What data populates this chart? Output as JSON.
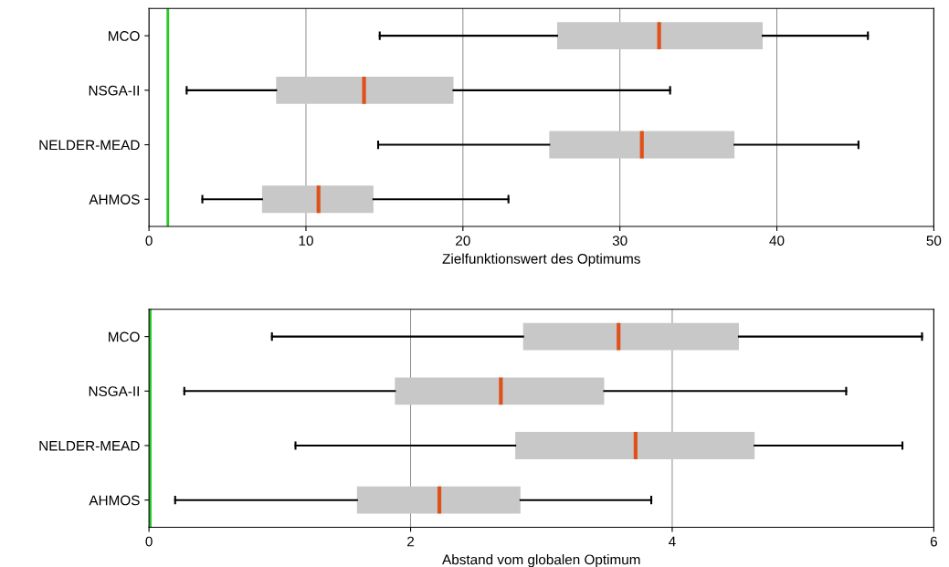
{
  "chart_data": [
    {
      "type": "box",
      "orientation": "horizontal",
      "xlabel": "Zielfunktionswert des Optimums",
      "categories": [
        "MCO",
        "NSGA-II",
        "NELDER-MEAD",
        "AHMOS"
      ],
      "xlim": [
        0,
        50
      ],
      "xticks": [
        0,
        10,
        20,
        30,
        40,
        50
      ],
      "grid": "x",
      "colors": [
        "#c8c8c8",
        "#c8c8c8",
        "#c8c8c8",
        "#c8c8c8"
      ],
      "boxes": [
        {
          "low": 14.7,
          "q1": 26.0,
          "median": 32.5,
          "q3": 39.1,
          "high": 45.8
        },
        {
          "low": 2.4,
          "q1": 8.1,
          "median": 13.7,
          "q3": 19.4,
          "high": 33.2
        },
        {
          "low": 14.6,
          "q1": 25.5,
          "median": 31.4,
          "q3": 37.3,
          "high": 45.2
        },
        {
          "low": 3.4,
          "q1": 7.2,
          "median": 10.8,
          "q3": 14.3,
          "high": 22.9
        }
      ],
      "ref_lines": [
        {
          "axis": "x",
          "value": 1.2,
          "label": null,
          "color": "#22cc22"
        }
      ]
    },
    {
      "type": "box",
      "orientation": "horizontal",
      "xlabel": "Abstand vom globalen Optimum",
      "categories": [
        "MCO",
        "NSGA-II",
        "NELDER-MEAD",
        "AHMOS"
      ],
      "xlim": [
        0,
        6
      ],
      "xticks": [
        0,
        2,
        4,
        6
      ],
      "grid": "x",
      "colors": [
        "#c8c8c8",
        "#c8c8c8",
        "#c8c8c8",
        "#c8c8c8"
      ],
      "boxes": [
        {
          "low": 0.94,
          "q1": 2.86,
          "median": 3.59,
          "q3": 4.51,
          "high": 5.91
        },
        {
          "low": 0.27,
          "q1": 1.88,
          "median": 2.69,
          "q3": 3.48,
          "high": 5.33
        },
        {
          "low": 1.12,
          "q1": 2.8,
          "median": 3.72,
          "q3": 4.63,
          "high": 5.76
        },
        {
          "low": 0.2,
          "q1": 1.59,
          "median": 2.22,
          "q3": 2.84,
          "high": 3.84
        }
      ],
      "ref_lines": [
        {
          "axis": "x",
          "value": 0.01,
          "label": null,
          "color": "#22cc22"
        }
      ]
    }
  ]
}
